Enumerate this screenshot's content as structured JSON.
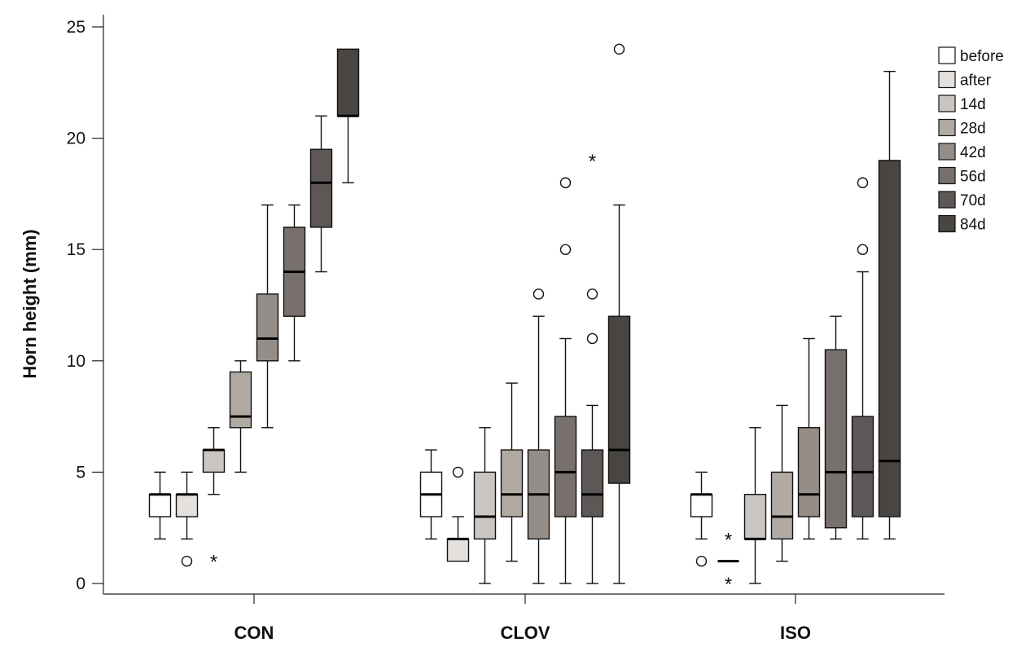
{
  "chart_data": {
    "type": "boxplot",
    "title": "",
    "ylabel": "Horn height (mm)",
    "xlabel": "",
    "ylim": [
      0,
      25
    ],
    "yticks": [
      0,
      5,
      10,
      15,
      20,
      25
    ],
    "groups": [
      "CON",
      "CLOV",
      "ISO"
    ],
    "series": [
      {
        "name": "before",
        "color": "#ffffff"
      },
      {
        "name": "after",
        "color": "#e4e0dd"
      },
      {
        "name": "14d",
        "color": "#cbc5c1"
      },
      {
        "name": "28d",
        "color": "#b1aaa3"
      },
      {
        "name": "42d",
        "color": "#958d87"
      },
      {
        "name": "56d",
        "color": "#77706c"
      },
      {
        "name": "70d",
        "color": "#5d5855"
      },
      {
        "name": "84d",
        "color": "#494542"
      }
    ],
    "boxes": {
      "CON": [
        {
          "series": "before",
          "min": 2,
          "q1": 3,
          "median": 4,
          "q3": 4,
          "max": 5,
          "outliers": [],
          "extremes": []
        },
        {
          "series": "after",
          "min": 2,
          "q1": 3,
          "median": 4,
          "q3": 4,
          "max": 5,
          "outliers": [
            1
          ],
          "extremes": []
        },
        {
          "series": "14d",
          "min": 4,
          "q1": 5,
          "median": 6,
          "q3": 6,
          "max": 7,
          "outliers": [],
          "extremes": [
            1
          ]
        },
        {
          "series": "28d",
          "min": 5,
          "q1": 7,
          "median": 7.5,
          "q3": 9.5,
          "max": 10,
          "outliers": [],
          "extremes": []
        },
        {
          "series": "42d",
          "min": 7,
          "q1": 10,
          "median": 11,
          "q3": 13,
          "max": 17,
          "outliers": [],
          "extremes": []
        },
        {
          "series": "56d",
          "min": 10,
          "q1": 12,
          "median": 14,
          "q3": 16,
          "max": 17,
          "outliers": [],
          "extremes": []
        },
        {
          "series": "70d",
          "min": 14,
          "q1": 16,
          "median": 18,
          "q3": 19.5,
          "max": 21,
          "outliers": [],
          "extremes": []
        },
        {
          "series": "84d",
          "min": 18,
          "q1": 21,
          "median": 21,
          "q3": 24,
          "max": 24,
          "outliers": [],
          "extremes": []
        }
      ],
      "CLOV": [
        {
          "series": "before",
          "min": 2,
          "q1": 3,
          "median": 4,
          "q3": 5,
          "max": 6,
          "outliers": [],
          "extremes": []
        },
        {
          "series": "after",
          "min": 1,
          "q1": 1,
          "median": 2,
          "q3": 2,
          "max": 3,
          "outliers": [
            5
          ],
          "extremes": []
        },
        {
          "series": "14d",
          "min": 0,
          "q1": 2,
          "median": 3,
          "q3": 5,
          "max": 7,
          "outliers": [],
          "extremes": []
        },
        {
          "series": "28d",
          "min": 1,
          "q1": 3,
          "median": 4,
          "q3": 6,
          "max": 9,
          "outliers": [],
          "extremes": []
        },
        {
          "series": "42d",
          "min": 0,
          "q1": 2,
          "median": 4,
          "q3": 6,
          "max": 12,
          "outliers": [
            13
          ],
          "extremes": []
        },
        {
          "series": "56d",
          "min": 0,
          "q1": 3,
          "median": 5,
          "q3": 7.5,
          "max": 11,
          "outliers": [
            15,
            18
          ],
          "extremes": []
        },
        {
          "series": "70d",
          "min": 0,
          "q1": 3,
          "median": 4,
          "q3": 6,
          "max": 8,
          "outliers": [
            11,
            13
          ],
          "extremes": [
            19
          ]
        },
        {
          "series": "84d",
          "min": 0,
          "q1": 4.5,
          "median": 6,
          "q3": 12,
          "max": 17,
          "outliers": [
            24
          ],
          "extremes": []
        }
      ],
      "ISO": [
        {
          "series": "before",
          "min": 2,
          "q1": 3,
          "median": 4,
          "q3": 4,
          "max": 5,
          "outliers": [
            1
          ],
          "extremes": []
        },
        {
          "series": "after",
          "min": 1,
          "q1": 1,
          "median": 1,
          "q3": 1,
          "max": 1,
          "outliers": [],
          "extremes": [
            0,
            2
          ]
        },
        {
          "series": "14d",
          "min": 0,
          "q1": 2,
          "median": 2,
          "q3": 4,
          "max": 7,
          "outliers": [],
          "extremes": []
        },
        {
          "series": "28d",
          "min": 1,
          "q1": 2,
          "median": 3,
          "q3": 5,
          "max": 8,
          "outliers": [],
          "extremes": []
        },
        {
          "series": "42d",
          "min": 2,
          "q1": 3,
          "median": 4,
          "q3": 7,
          "max": 11,
          "outliers": [],
          "extremes": []
        },
        {
          "series": "56d",
          "min": 2,
          "q1": 2.5,
          "median": 5,
          "q3": 10.5,
          "max": 12,
          "outliers": [],
          "extremes": []
        },
        {
          "series": "70d",
          "min": 2,
          "q1": 3,
          "median": 5,
          "q3": 7.5,
          "max": 14,
          "outliers": [
            15,
            18
          ],
          "extremes": []
        },
        {
          "series": "84d",
          "min": 2,
          "q1": 3,
          "median": 5.5,
          "q3": 19,
          "max": 23,
          "outliers": [],
          "extremes": []
        }
      ]
    },
    "legend": {
      "position": "top-right"
    },
    "grid": false
  }
}
